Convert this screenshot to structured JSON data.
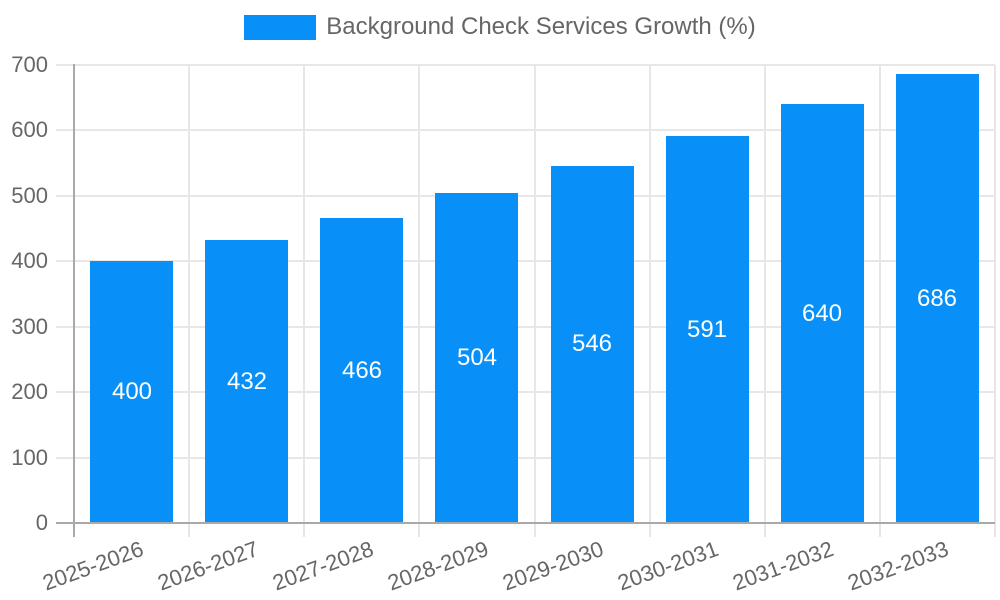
{
  "chart_data": {
    "type": "bar",
    "legend_label": "Background Check Services Growth (%)",
    "categories": [
      "2025-2026",
      "2026-2027",
      "2027-2028",
      "2028-2029",
      "2029-2030",
      "2030-2031",
      "2031-2032",
      "2032-2033"
    ],
    "values": [
      400,
      432,
      466,
      504,
      546,
      591,
      640,
      686
    ],
    "title": "",
    "xlabel": "",
    "ylabel": "",
    "ylim": [
      0,
      700
    ],
    "ytick_step": 100,
    "ytick_labels": [
      "0",
      "100",
      "200",
      "300",
      "400",
      "500",
      "600",
      "700"
    ],
    "x_tick_rotation_deg": -20,
    "grid": true,
    "grid_offset": true,
    "legend_position": "top-center",
    "value_label_position": "inside-center",
    "colors": {
      "bar": "#0890F8",
      "grid": "#E7E7E7",
      "axis": "#A9A9A9",
      "tick_text": "#666666",
      "legend_text": "#666666",
      "value_text": "#FFFFFF",
      "background": "#FFFFFF"
    }
  }
}
